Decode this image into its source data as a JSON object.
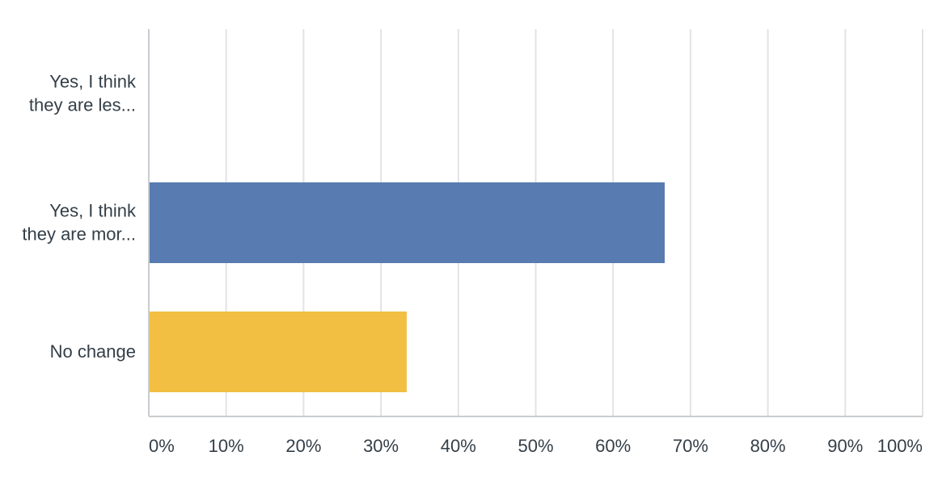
{
  "chart_data": {
    "type": "bar",
    "orientation": "horizontal",
    "categories": [
      [
        "Yes, I think",
        "they are les..."
      ],
      [
        "Yes, I think",
        "they are mor..."
      ],
      [
        "No change"
      ]
    ],
    "values": [
      0,
      66.67,
      33.33
    ],
    "colors": [
      "#6a9bd8",
      "#587bb1",
      "#f2bf42"
    ],
    "x_ticks": [
      "0%",
      "10%",
      "20%",
      "30%",
      "40%",
      "50%",
      "60%",
      "70%",
      "80%",
      "90%",
      "100%"
    ],
    "xlim": [
      0,
      100
    ],
    "title": "",
    "xlabel": "",
    "ylabel": "",
    "grid": true,
    "legend": "none"
  }
}
